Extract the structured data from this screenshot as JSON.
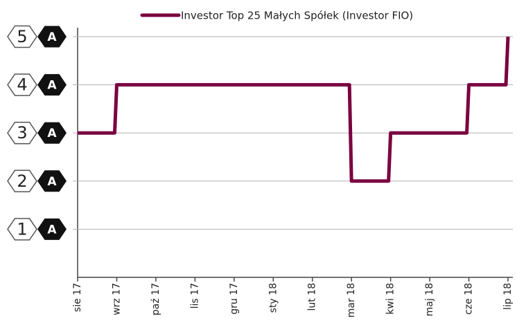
{
  "chart_data": {
    "type": "step-line",
    "categories": [
      "sie 17",
      "wrz 17",
      "paź 17",
      "lis 17",
      "gru 17",
      "sty 18",
      "lut 18",
      "mar 18",
      "kwi 18",
      "maj 18",
      "cze 18",
      "lip 18"
    ],
    "series": [
      {
        "name": "Investor Top 25 Małych Spółek (Investor FIO)",
        "color": "#7a0040",
        "values": [
          3,
          4,
          4,
          4,
          4,
          4,
          4,
          2,
          3,
          3,
          4,
          5
        ]
      }
    ],
    "ylim": [
      0,
      5
    ],
    "yticks": [
      1,
      2,
      3,
      4,
      5
    ],
    "tick_badge": "A",
    "grid": true,
    "legend": "top"
  }
}
